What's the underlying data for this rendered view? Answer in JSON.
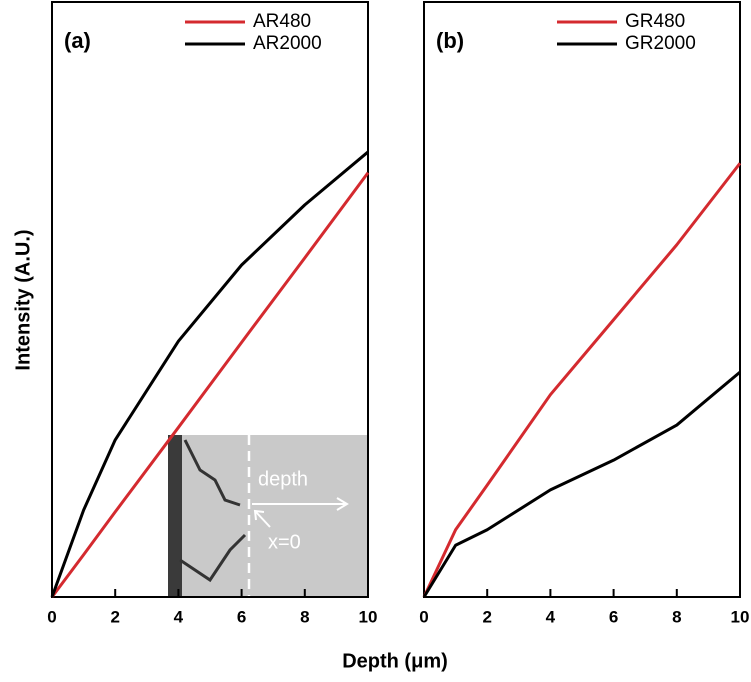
{
  "ylabel": "Intensity (A.U.)",
  "xlabel": "Depth (μm)",
  "chart_data": [
    {
      "type": "line",
      "title": "(a)",
      "x": [
        0,
        1,
        2,
        4,
        6,
        8,
        10
      ],
      "series": [
        {
          "name": "AR480",
          "color": "#d42a2f",
          "values": [
            0,
            7.1,
            14.3,
            28.5,
            42.8,
            57,
            71.3
          ]
        },
        {
          "name": "AR2000",
          "color": "#000000",
          "values": [
            0,
            14.6,
            26.4,
            43,
            55.8,
            65.9,
            74.8
          ]
        }
      ],
      "xlim": [
        0,
        10
      ],
      "xticks": [
        0,
        2,
        4,
        6,
        8,
        10
      ],
      "ylim": [
        0,
        100
      ],
      "legend": "top-right",
      "annotations": [
        "depth",
        "x=0"
      ]
    },
    {
      "type": "line",
      "title": "(b)",
      "x": [
        0,
        1,
        2,
        4,
        6,
        8,
        10
      ],
      "series": [
        {
          "name": "GR480",
          "color": "#d42a2f",
          "values": [
            0,
            11.3,
            18.8,
            34,
            46.6,
            59.2,
            72.9
          ]
        },
        {
          "name": "GR2000",
          "color": "#000000",
          "values": [
            0,
            8.7,
            11.3,
            18,
            23,
            28.9,
            37.8
          ]
        }
      ],
      "xlim": [
        0,
        10
      ],
      "xticks": [
        0,
        2,
        4,
        6,
        8,
        10
      ],
      "ylim": [
        0,
        100
      ],
      "legend": "top-right"
    }
  ]
}
